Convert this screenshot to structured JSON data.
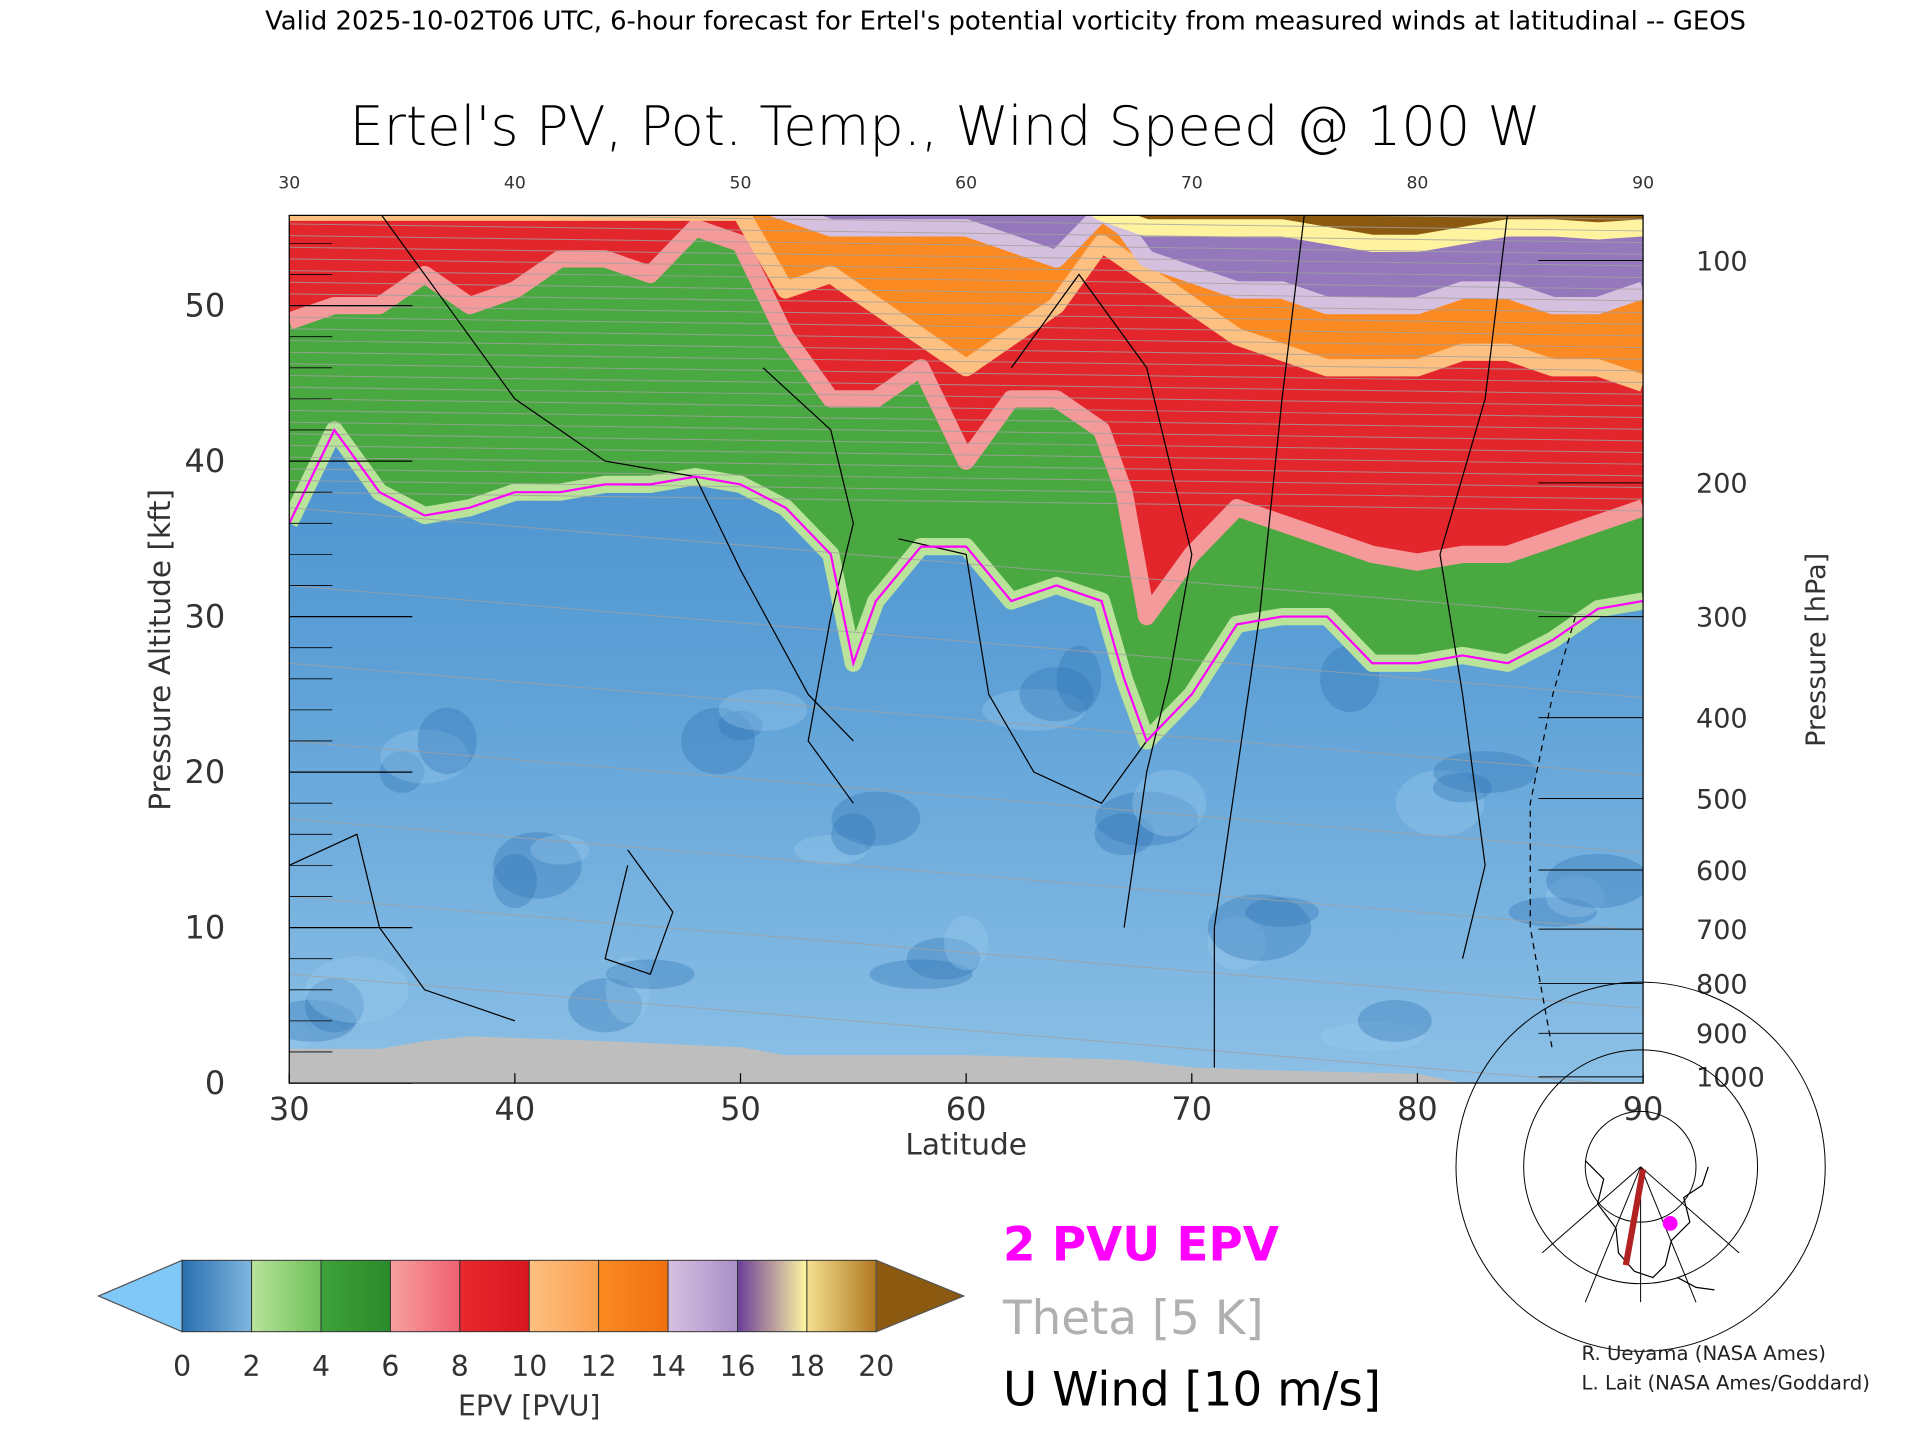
{
  "header": {
    "caption": "Valid 2025-10-02T06 UTC, 6-hour forecast for Ertel's potential vorticity from measured winds at latitudinal -- GEOS"
  },
  "chart_data": {
    "type": "heatmap",
    "title": "Ertel's PV, Pot. Temp., Wind Speed @ 100 W",
    "xlabel": "Latitude",
    "ylabel": "Pressure Altitude [kft]",
    "ylabel_right": "Pressure [hPa]",
    "xlim": [
      30,
      90
    ],
    "ylim": [
      0,
      55.8
    ],
    "x_ticks": [
      "30",
      "40",
      "50",
      "60",
      "70",
      "80",
      "90"
    ],
    "y_ticks": [
      "0",
      "10",
      "20",
      "30",
      "40",
      "50"
    ],
    "pressure_ticks": [
      {
        "label": "100",
        "kft": 52.9
      },
      {
        "label": "200",
        "kft": 38.6
      },
      {
        "label": "300",
        "kft": 30.0
      },
      {
        "label": "400",
        "kft": 23.5
      },
      {
        "label": "500",
        "kft": 18.3
      },
      {
        "label": "600",
        "kft": 13.7
      },
      {
        "label": "700",
        "kft": 9.9
      },
      {
        "label": "800",
        "kft": 6.4
      },
      {
        "label": "900",
        "kft": 3.2
      },
      {
        "label": "1000",
        "kft": 0.4
      }
    ],
    "lat": [
      30,
      32,
      34,
      36,
      38,
      40,
      42,
      44,
      46,
      48,
      50,
      52,
      54,
      55,
      56,
      58,
      60,
      62,
      64,
      66,
      67,
      68,
      70,
      72,
      74,
      76,
      78,
      80,
      82,
      84,
      86,
      88,
      90
    ],
    "pv_level_altitudes_kft": {
      "2": [
        36,
        42,
        38,
        36.5,
        37,
        38,
        38,
        38.5,
        38.5,
        39,
        38.5,
        37,
        34,
        27,
        31,
        34.5,
        34.5,
        31,
        32,
        31,
        26,
        22,
        25,
        29.5,
        30,
        30,
        27,
        27,
        27.5,
        27,
        28.5,
        30.5,
        31
      ],
      "6": [
        49,
        50,
        50,
        52,
        50,
        51,
        53,
        53,
        52,
        55,
        54,
        48,
        44,
        44,
        44,
        46,
        40,
        44,
        44,
        42,
        38,
        30,
        34,
        37,
        36,
        35,
        34,
        33.5,
        34,
        34,
        35,
        36,
        37
      ],
      "10": [
        56,
        56,
        56,
        56,
        56,
        56,
        56,
        56,
        56,
        56,
        56,
        51,
        52,
        51,
        50,
        48,
        46,
        48,
        50,
        54,
        53,
        52,
        50,
        48,
        47,
        46,
        46,
        46,
        47,
        47,
        46,
        46,
        45
      ],
      "14": [
        57,
        57,
        57,
        57,
        57,
        57,
        57,
        57,
        57,
        57,
        57,
        56,
        55,
        55,
        55,
        55,
        55,
        54,
        53,
        56,
        55,
        53,
        52,
        51,
        51,
        50,
        50,
        50,
        51,
        51,
        50,
        50,
        51
      ],
      "18": [
        58,
        58,
        58,
        58,
        58,
        58,
        58,
        58,
        58,
        58,
        58,
        58,
        58,
        58,
        58,
        58,
        58,
        58,
        58,
        56,
        55.5,
        55,
        55,
        55,
        55,
        54.5,
        54,
        54,
        54.5,
        55,
        55,
        54.8,
        55
      ]
    },
    "colorbar": {
      "label": "EPV [PVU]",
      "ticks": [
        "0",
        "2",
        "4",
        "6",
        "8",
        "10",
        "12",
        "14",
        "16",
        "18",
        "20"
      ],
      "colors": [
        [
          "#2a6fb0",
          "#7fb6df"
        ],
        [
          "#b9e39a",
          "#6fc05a"
        ],
        [
          "#3fa23a",
          "#2a8a2a"
        ],
        [
          "#f7a0a0",
          "#f06070"
        ],
        [
          "#e8282e",
          "#d81820"
        ],
        [
          "#fdc080",
          "#fba050"
        ],
        [
          "#fb8a22",
          "#f07010"
        ],
        [
          "#d6c0e0",
          "#a890c8"
        ],
        [
          "#6a3d9a",
          "#fff7a0"
        ],
        [
          "#f5e090",
          "#b07820"
        ]
      ],
      "under_color": "#7fc8f8",
      "over_color": "#8b5a10"
    },
    "legend": {
      "pv": "2 PVU EPV",
      "theta": "Theta [5 K]",
      "wind": "U Wind [10 m/s]"
    },
    "colors": {
      "pv2": "#ff00ff",
      "theta": "#a0a0a0",
      "wind": "#000000",
      "ground": "#bebebe",
      "section": "#b22222",
      "point": "#ff00ff"
    }
  },
  "credits": {
    "line1": "R. Ueyama (NASA Ames)",
    "line2": "L. Lait (NASA Ames/Goddard)"
  }
}
